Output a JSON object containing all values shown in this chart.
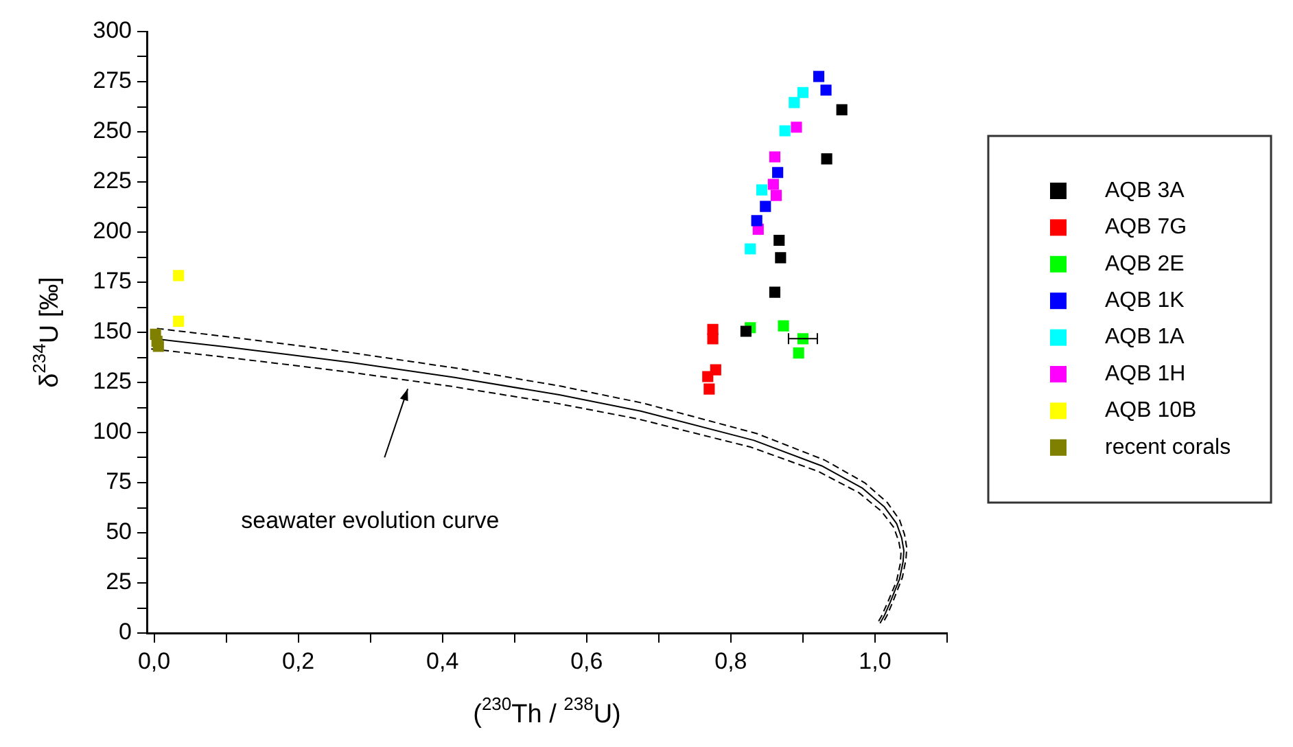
{
  "chart_data": {
    "type": "scatter",
    "xlabel": "($^{230}$Th / $^{238}$U)",
    "ylabel": "δ$^{234}$U [‰]",
    "xlim": [
      -0.01,
      1.1
    ],
    "ylim": [
      0,
      300
    ],
    "xticks": [
      {
        "value": 0,
        "label": "0,0"
      },
      {
        "value": 0.1,
        "label": null
      },
      {
        "value": 0.2,
        "label": "0,2"
      },
      {
        "value": 0.3,
        "label": null
      },
      {
        "value": 0.4,
        "label": "0,4"
      },
      {
        "value": 0.5,
        "label": null
      },
      {
        "value": 0.6,
        "label": "0,6"
      },
      {
        "value": 0.7,
        "label": null
      },
      {
        "value": 0.8,
        "label": "0,8"
      },
      {
        "value": 0.9,
        "label": null
      },
      {
        "value": 1.0,
        "label": "1,0"
      },
      {
        "value": 1.1,
        "label": null
      }
    ],
    "yticks": [
      0,
      {
        "value": 12.5,
        "label": null
      },
      25,
      {
        "value": 37.5,
        "label": null
      },
      50,
      {
        "value": 62.5,
        "label": null
      },
      75,
      {
        "value": 87.5,
        "label": null
      },
      100,
      {
        "value": 112.5,
        "label": null
      },
      125,
      {
        "value": 137.5,
        "label": null
      },
      150,
      {
        "value": 162.5,
        "label": null
      },
      175,
      {
        "value": 187.5,
        "label": null
      },
      200,
      {
        "value": 212.5,
        "label": null
      },
      225,
      {
        "value": 237.5,
        "label": null
      },
      250,
      {
        "value": 262.5,
        "label": null
      },
      275,
      {
        "value": 287.5,
        "label": null
      },
      300
    ],
    "grid": false,
    "legend": "right",
    "marker": "square",
    "annotations": [
      "seawater evolution curve"
    ],
    "series": [
      {
        "type": "line",
        "marker": "none",
        "line_style": "solid",
        "color": "#000000",
        "x": [
          0,
          0.1,
          0.191,
          0.274,
          0.417,
          0.562,
          0.675,
          0.832,
          0.926,
          0.982,
          1.013,
          1.03,
          1.037,
          1.04,
          1.039,
          1.034,
          1.021,
          1.013,
          1.007
        ],
        "values": [
          146.8,
          142.7,
          138.7,
          134.9,
          127.5,
          118.8,
          110.7,
          96.1,
          83.4,
          72.4,
          62.9,
          54.6,
          47.4,
          41.1,
          35.7,
          26.9,
          15.3,
          8.7,
          4.9
        ]
      },
      {
        "type": "line",
        "marker": "none",
        "line_style": "dashed",
        "color": "#000000",
        "x": [
          0.004,
          0.104,
          0.195,
          0.278,
          0.421,
          0.566,
          0.679,
          0.836,
          0.93,
          0.986,
          1.017,
          1.034,
          1.041,
          1.044,
          1.043,
          1.038,
          1.025,
          1.017,
          1.011
        ],
        "values": [
          151.9,
          147.7,
          143.6,
          139.6,
          132,
          123,
          114.6,
          99.5,
          86.3,
          74.9,
          65.1,
          56.5,
          49.1,
          42.5,
          36.9,
          27.8,
          15.8,
          9,
          5.1
        ]
      },
      {
        "type": "line",
        "marker": "none",
        "line_style": "dashed",
        "color": "#000000",
        "x": [
          -0.004,
          0.096,
          0.187,
          0.27,
          0.413,
          0.558,
          0.671,
          0.828,
          0.922,
          0.978,
          1.009,
          1.026,
          1.033,
          1.036,
          1.035,
          1.03,
          1.017,
          1.009,
          1.003
        ],
        "values": [
          141.7,
          137.7,
          133.8,
          130.2,
          123,
          114.6,
          106.8,
          92.7,
          80.5,
          69.9,
          60.7,
          52.7,
          45.7,
          39.7,
          34.5,
          26,
          14.8,
          8.4,
          4.7
        ]
      },
      {
        "name": "AQB 3A",
        "color": "#000000",
        "x": [
          0.954,
          0.933,
          0.867,
          0.869,
          0.861,
          0.821
        ],
        "values": [
          261,
          236.5,
          195.9,
          187.2,
          170,
          150.5
        ]
      },
      {
        "name": "AQB 7G",
        "color": "#ff0000",
        "x": [
          0.775,
          0.775,
          0.779,
          0.768,
          0.77
        ],
        "values": [
          151.4,
          146.8,
          131.3,
          127.9,
          121.7
        ]
      },
      {
        "name": "AQB 2E",
        "color": "#00ff00",
        "x": [
          0.827,
          0.873,
          0.9,
          0.894
        ],
        "values": [
          152.3,
          153.2,
          146.8,
          139.7
        ],
        "xerrors": [
          null,
          null,
          0.02,
          null
        ]
      },
      {
        "name": "AQB 1K",
        "color": "#0000ff",
        "x": [
          0.922,
          0.932,
          0.865,
          0.848,
          0.836
        ],
        "values": [
          277.6,
          270.8,
          229.7,
          212.8,
          205.7
        ]
      },
      {
        "name": "AQB 1A",
        "color": "#00ffff",
        "x": [
          0.9,
          0.888,
          0.875,
          0.843,
          0.827
        ],
        "values": [
          269.6,
          264.6,
          250.5,
          221,
          191.6
        ]
      },
      {
        "name": "AQB 1H",
        "color": "#ff00ff",
        "x": [
          0.891,
          0.861,
          0.859,
          0.863,
          0.838
        ],
        "values": [
          252.3,
          237.5,
          223.8,
          218.3,
          201.4
        ]
      },
      {
        "name": "AQB 10B",
        "color": "#ffff00",
        "x": [
          0.034,
          0.034
        ],
        "values": [
          178.3,
          155.5
        ]
      },
      {
        "name": "recent corals",
        "color": "#808000",
        "x": [
          0.002,
          0.004,
          0.006
        ],
        "values": [
          149,
          145.5,
          143
        ]
      }
    ]
  }
}
